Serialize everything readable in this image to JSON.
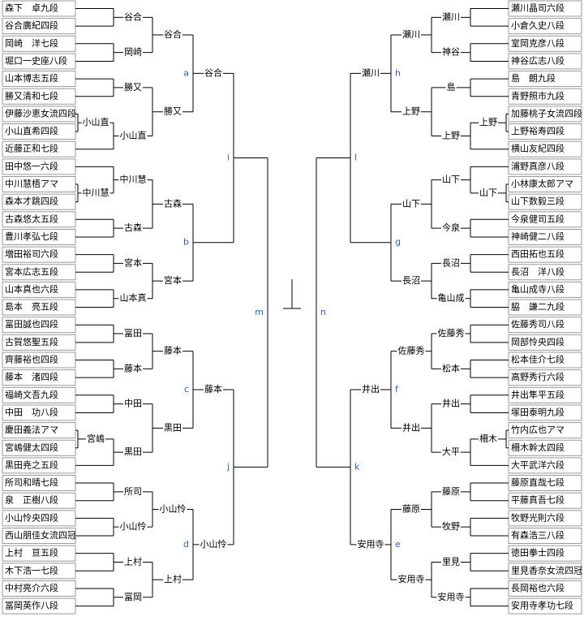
{
  "left": {
    "label": "m",
    "sides": [
      {
        "label": "i",
        "sides": [
          {
            "label": "a",
            "winner": "谷合",
            "sides": [
              {
                "winner": "谷合",
                "sides": [
                  {
                    "winner": "谷合",
                    "sides": [
                      "森下　卓九段",
                      "谷合廣紀四段"
                    ]
                  },
                  {
                    "winner": "岡崎",
                    "sides": [
                      "岡崎　洋七段",
                      "堀口一史座八段"
                    ]
                  }
                ]
              },
              {
                "winner": "勝又",
                "sides": [
                  {
                    "winner": "勝又",
                    "sides": [
                      "山本博志五段",
                      "勝又清和七段"
                    ]
                  },
                  {
                    "winner": "小山直",
                    "sides": [
                      {
                        "winner": "小山直",
                        "sides": [
                          "伊藤沙恵女流四段",
                          "小山直希四段"
                        ]
                      },
                      "近藤正和七段"
                    ]
                  }
                ]
              }
            ]
          },
          {
            "label": "b",
            "sides": [
              {
                "winner": "古森",
                "sides": [
                  {
                    "winner": "中川慧",
                    "sides": [
                      "田中悠一六段",
                      {
                        "winner": "中川慧",
                        "sides": [
                          "中川慧梧アマ",
                          "森本才跳四段"
                        ]
                      }
                    ]
                  },
                  {
                    "winner": "古森",
                    "sides": [
                      "古森悠太五段",
                      "豊川孝弘七段"
                    ]
                  }
                ]
              },
              {
                "winner": "宮本",
                "sides": [
                  {
                    "winner": "宮本",
                    "sides": [
                      "増田裕司六段",
                      "宮本広志五段"
                    ]
                  },
                  {
                    "winner": "山本真",
                    "sides": [
                      "山本真也六段",
                      "島本　亮五段"
                    ]
                  }
                ]
              }
            ]
          }
        ]
      },
      {
        "label": "j",
        "sides": [
          {
            "label": "c",
            "winner": "藤本",
            "sides": [
              {
                "winner": "藤本",
                "sides": [
                  {
                    "winner": "冨田",
                    "sides": [
                      "冨田誠也四段",
                      "古賀悠聖五段"
                    ]
                  },
                  {
                    "winner": "藤本",
                    "sides": [
                      "齊藤裕也四段",
                      "藤本　渚四段"
                    ]
                  }
                ]
              },
              {
                "winner": "黒田",
                "sides": [
                  {
                    "winner": "中田",
                    "sides": [
                      "福崎文吾九段",
                      "中田　功八段"
                    ]
                  },
                  {
                    "winner": "黒田",
                    "sides": [
                      {
                        "winner": "宮嶋",
                        "sides": [
                          "慶田義法アマ",
                          "宮嶋健太四段"
                        ]
                      },
                      "黒田尭之五段"
                    ]
                  }
                ]
              }
            ]
          },
          {
            "label": "d",
            "winner": "小山怜",
            "sides": [
              {
                "winner": "小山怜",
                "sides": [
                  {
                    "winner": "所司",
                    "sides": [
                      "所司和晴七段",
                      "泉　正樹八段"
                    ]
                  },
                  {
                    "winner": "小山怜",
                    "sides": [
                      "小山怜央四段",
                      "西山朋佳女流四冠"
                    ]
                  }
                ]
              },
              {
                "winner": "上村",
                "sides": [
                  {
                    "winner": "上村",
                    "sides": [
                      "上村　亘五段",
                      "木下浩一七段"
                    ]
                  },
                  {
                    "winner": "冨岡",
                    "sides": [
                      "中村亮介六段",
                      "冨岡英作八段"
                    ]
                  }
                ]
              }
            ]
          }
        ]
      }
    ]
  },
  "right": {
    "label": "n",
    "sides": [
      {
        "label": "l",
        "sides": [
          {
            "label": "h",
            "winner": "瀬川",
            "sides": [
              {
                "winner": "瀬川",
                "sides": [
                  {
                    "winner": "瀬川",
                    "sides": [
                      "瀬川晶司六段",
                      "小倉久史八段"
                    ]
                  },
                  {
                    "winner": "神谷",
                    "sides": [
                      "室岡克彦八段",
                      "神谷広志八段"
                    ]
                  }
                ]
              },
              {
                "winner": "上野",
                "sides": [
                  {
                    "winner": "島",
                    "sides": [
                      "島　朗九段",
                      "青野照市九段"
                    ]
                  },
                  {
                    "winner": "上野",
                    "sides": [
                      {
                        "winner": "上野",
                        "sides": [
                          "加藤桃子女流四段",
                          "上野裕寿四段"
                        ]
                      },
                      "横山友紀四段"
                    ]
                  }
                ]
              }
            ]
          },
          {
            "label": "g",
            "sides": [
              {
                "winner": "山下",
                "sides": [
                  {
                    "winner": "山下",
                    "sides": [
                      "浦野真彦八段",
                      {
                        "winner": "山下",
                        "sides": [
                          "小林康太郎アマ",
                          "山下数毅三段"
                        ]
                      }
                    ]
                  },
                  {
                    "winner": "今泉",
                    "sides": [
                      "今泉健司五段",
                      "神崎健二八段"
                    ]
                  }
                ]
              },
              {
                "winner": "長沼",
                "sides": [
                  {
                    "winner": "長沼",
                    "sides": [
                      "西田拓也五段",
                      "長沼　洋八段"
                    ]
                  },
                  {
                    "winner": "亀山成",
                    "sides": [
                      "亀山成寺八段",
                      "脇　謙二九段"
                    ]
                  }
                ]
              }
            ]
          }
        ]
      },
      {
        "label": "k",
        "sides": [
          {
            "label": "f",
            "winner": "井出",
            "sides": [
              {
                "winner": "佐藤秀",
                "sides": [
                  {
                    "winner": "佐藤秀",
                    "sides": [
                      "佐藤秀司八段",
                      "岡部怜央四段"
                    ]
                  },
                  {
                    "winner": "松本",
                    "sides": [
                      "松本佳介七段",
                      "高野秀行六段"
                    ]
                  }
                ]
              },
              {
                "winner": "井出",
                "sides": [
                  {
                    "winner": "井出",
                    "sides": [
                      "井出隼平五段",
                      "塚田泰明九段"
                    ]
                  },
                  {
                    "winner": "大平",
                    "sides": [
                      {
                        "winner": "柵木",
                        "sides": [
                          "竹内広也アマ",
                          "柵木幹太四段"
                        ]
                      },
                      "大平武洋六段"
                    ]
                  }
                ]
              }
            ]
          },
          {
            "label": "e",
            "winner": "安用寺",
            "sides": [
              {
                "winner": "藤原",
                "sides": [
                  {
                    "winner": "藤原",
                    "sides": [
                      "藤原直哉七段",
                      "平藤真吾七段"
                    ]
                  },
                  {
                    "winner": "牧野",
                    "sides": [
                      "牧野光則六段",
                      "有森浩三八段"
                    ]
                  }
                ]
              },
              {
                "winner": "安用寺",
                "sides": [
                  {
                    "winner": "里見",
                    "sides": [
                      "徳田拳士四段",
                      "里見香奈女流四冠"
                    ]
                  },
                  {
                    "winner": "安用寺",
                    "sides": [
                      "長岡裕也六段",
                      "安用寺孝功七段"
                    ]
                  }
                ]
              }
            ]
          }
        ]
      }
    ]
  }
}
